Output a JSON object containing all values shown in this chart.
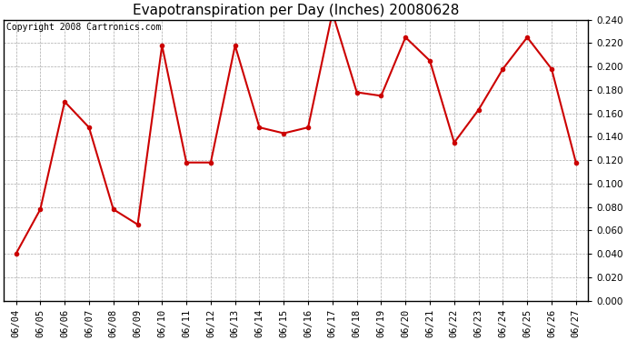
{
  "title": "Evapotranspiration per Day (Inches) 20080628",
  "copyright_text": "Copyright 2008 Cartronics.com",
  "dates": [
    "06/04",
    "06/05",
    "06/06",
    "06/07",
    "06/08",
    "06/09",
    "06/10",
    "06/11",
    "06/12",
    "06/13",
    "06/14",
    "06/15",
    "06/16",
    "06/17",
    "06/18",
    "06/19",
    "06/20",
    "06/21",
    "06/22",
    "06/23",
    "06/24",
    "06/25",
    "06/26",
    "06/27"
  ],
  "values": [
    0.04,
    0.078,
    0.17,
    0.148,
    0.078,
    0.065,
    0.218,
    0.118,
    0.118,
    0.218,
    0.148,
    0.143,
    0.148,
    0.246,
    0.178,
    0.175,
    0.225,
    0.205,
    0.135,
    0.163,
    0.198,
    0.225,
    0.198,
    0.118
  ],
  "line_color": "#cc0000",
  "marker": "o",
  "marker_size": 3,
  "ylim": [
    0.0,
    0.24
  ],
  "ytick_step": 0.02,
  "background_color": "#ffffff",
  "plot_bg_color": "#ffffff",
  "grid_color": "#aaaaaa",
  "title_fontsize": 11,
  "copyright_fontsize": 7,
  "tick_fontsize": 7.5,
  "linewidth": 1.5
}
